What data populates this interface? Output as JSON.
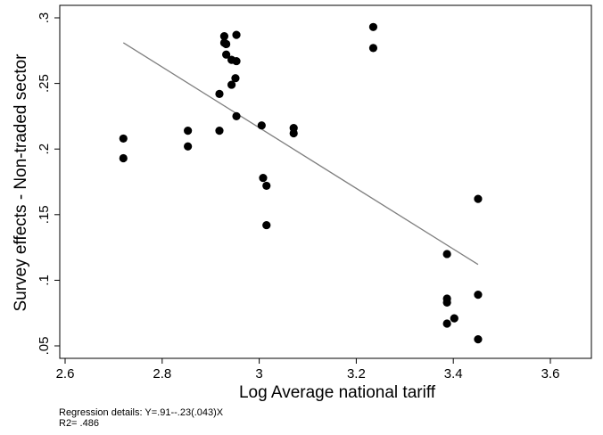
{
  "chart_data": {
    "type": "scatter",
    "xlabel": "Log Average national tariff",
    "ylabel": "Survey effects - Non-traded sector",
    "xlim": [
      2.6,
      3.7
    ],
    "ylim": [
      0.05,
      0.3
    ],
    "x_ticks": [
      2.6,
      2.8,
      3,
      3.2,
      3.4,
      3.6
    ],
    "x_tick_labels": [
      "2.6",
      "2.8",
      "3",
      "3.2",
      "3.4",
      "3.6"
    ],
    "y_ticks": [
      0.05,
      0.1,
      0.15,
      0.2,
      0.25,
      0.3
    ],
    "y_tick_labels": [
      ".05",
      ".1",
      ".15",
      ".2",
      ".25",
      ".3"
    ],
    "grid": false,
    "legend": "none",
    "series": [
      {
        "type": "scatter",
        "color": "#000000",
        "points": [
          {
            "x": 2.72,
            "y": 0.208
          },
          {
            "x": 2.72,
            "y": 0.193
          },
          {
            "x": 2.853,
            "y": 0.214
          },
          {
            "x": 2.853,
            "y": 0.202
          },
          {
            "x": 2.918,
            "y": 0.242
          },
          {
            "x": 2.918,
            "y": 0.214
          },
          {
            "x": 2.928,
            "y": 0.286
          },
          {
            "x": 2.928,
            "y": 0.281
          },
          {
            "x": 2.932,
            "y": 0.28
          },
          {
            "x": 2.932,
            "y": 0.272
          },
          {
            "x": 2.943,
            "y": 0.268
          },
          {
            "x": 2.943,
            "y": 0.249
          },
          {
            "x": 2.953,
            "y": 0.287
          },
          {
            "x": 2.953,
            "y": 0.267
          },
          {
            "x": 2.951,
            "y": 0.254
          },
          {
            "x": 2.953,
            "y": 0.225
          },
          {
            "x": 3.005,
            "y": 0.218
          },
          {
            "x": 3.008,
            "y": 0.178
          },
          {
            "x": 3.015,
            "y": 0.172
          },
          {
            "x": 3.015,
            "y": 0.142
          },
          {
            "x": 3.071,
            "y": 0.216
          },
          {
            "x": 3.071,
            "y": 0.212
          },
          {
            "x": 3.235,
            "y": 0.293
          },
          {
            "x": 3.235,
            "y": 0.277
          },
          {
            "x": 3.387,
            "y": 0.12
          },
          {
            "x": 3.387,
            "y": 0.086
          },
          {
            "x": 3.387,
            "y": 0.083
          },
          {
            "x": 3.387,
            "y": 0.067
          },
          {
            "x": 3.402,
            "y": 0.071
          },
          {
            "x": 3.451,
            "y": 0.162
          },
          {
            "x": 3.451,
            "y": 0.089
          },
          {
            "x": 3.451,
            "y": 0.055
          }
        ]
      },
      {
        "type": "line",
        "color": "#7f7f7f",
        "points": [
          {
            "x": 2.72,
            "y": 0.281
          },
          {
            "x": 3.451,
            "y": 0.112
          }
        ]
      }
    ],
    "notes": [
      "Regression details: Y=.91--.23(.043)X",
      "R2= .486"
    ]
  }
}
